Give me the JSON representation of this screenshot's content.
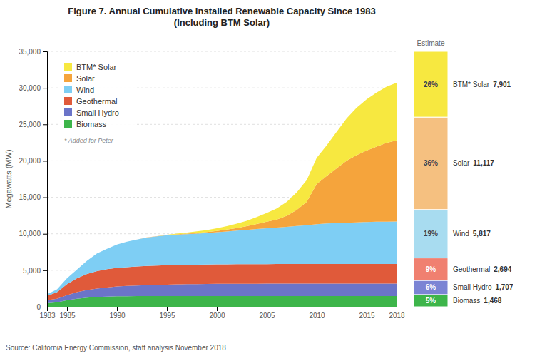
{
  "chart_data": [
    {
      "type": "area",
      "title": "Figure 7. Annual Cumulative Installed Renewable Capacity Since 1983\n(Including BTM Solar)",
      "y_label": "Megawatts (MW)",
      "annotations": [
        "* Added for Peter",
        "Source: California Energy Commission, staff analysis November 2018"
      ],
      "stacked": true,
      "grid": true,
      "legend": "top-left",
      "x": [
        1983,
        1984,
        1985,
        1986,
        1987,
        1988,
        1989,
        1990,
        1991,
        1992,
        1993,
        1994,
        1995,
        1996,
        1997,
        1998,
        1999,
        2000,
        2001,
        2002,
        2003,
        2004,
        2005,
        2006,
        2007,
        2008,
        2009,
        2010,
        2011,
        2012,
        2013,
        2014,
        2015,
        2016,
        2017,
        2018
      ],
      "series": [
        {
          "name": "Biomass",
          "color": "#3db54a",
          "values": [
            500,
            600,
            900,
            1100,
            1250,
            1350,
            1400,
            1430,
            1450,
            1455,
            1458,
            1460,
            1461,
            1462,
            1463,
            1464,
            1465,
            1466,
            1466,
            1467,
            1467,
            1467,
            1467,
            1468,
            1468,
            1468,
            1468,
            1468,
            1468,
            1468,
            1468,
            1468,
            1468,
            1468,
            1468,
            1468
          ]
        },
        {
          "name": "Small Hydro",
          "color": "#6b74c8",
          "values": [
            400,
            500,
            700,
            900,
            1050,
            1150,
            1250,
            1350,
            1400,
            1450,
            1500,
            1550,
            1580,
            1610,
            1630,
            1650,
            1665,
            1675,
            1685,
            1690,
            1695,
            1698,
            1700,
            1702,
            1703,
            1704,
            1705,
            1706,
            1706,
            1707,
            1707,
            1707,
            1707,
            1707,
            1707,
            1707
          ]
        },
        {
          "name": "Geothermal",
          "color": "#e05a3a",
          "values": [
            600,
            900,
            1500,
            1900,
            2200,
            2400,
            2500,
            2550,
            2580,
            2610,
            2630,
            2645,
            2655,
            2660,
            2663,
            2666,
            2670,
            2672,
            2675,
            2678,
            2680,
            2682,
            2685,
            2687,
            2689,
            2690,
            2691,
            2692,
            2692,
            2693,
            2693,
            2694,
            2694,
            2694,
            2694,
            2694
          ]
        },
        {
          "name": "Wind",
          "color": "#7ecef4",
          "values": [
            200,
            400,
            800,
            1200,
            1800,
            2400,
            2800,
            3200,
            3500,
            3700,
            3900,
            4000,
            4100,
            4150,
            4200,
            4250,
            4300,
            4400,
            4500,
            4600,
            4700,
            4800,
            4900,
            5000,
            5100,
            5200,
            5300,
            5450,
            5550,
            5600,
            5650,
            5700,
            5750,
            5780,
            5800,
            5817
          ]
        },
        {
          "name": "Solar",
          "color": "#f5a43c",
          "values": [
            0,
            0,
            0,
            0,
            0,
            0,
            0,
            0,
            0,
            0,
            10,
            20,
            30,
            50,
            70,
            100,
            130,
            180,
            250,
            350,
            500,
            700,
            900,
            1100,
            1500,
            2200,
            3200,
            5500,
            6500,
            7500,
            8500,
            9200,
            9800,
            10300,
            10800,
            11117
          ]
        },
        {
          "name": "BTM* Solar",
          "color": "#f7e840",
          "values": [
            0,
            0,
            0,
            0,
            0,
            0,
            0,
            0,
            0,
            0,
            0,
            0,
            50,
            100,
            150,
            200,
            280,
            370,
            480,
            600,
            750,
            950,
            1200,
            1500,
            1900,
            2400,
            3000,
            3600,
            4200,
            5000,
            5800,
            6500,
            7000,
            7400,
            7700,
            7901
          ]
        }
      ],
      "xlim": [
        1983,
        2018
      ],
      "xticks": [
        1983,
        1985,
        1990,
        1995,
        2000,
        2005,
        2010,
        2015,
        2018
      ],
      "ylim": [
        0,
        35000
      ],
      "yticks": [
        0,
        {
          "value": 5000,
          "label": "5,000"
        },
        {
          "value": 10000,
          "label": "10,000"
        },
        {
          "value": 15000,
          "label": "15,000"
        },
        {
          "value": 20000,
          "label": "20,000"
        },
        {
          "value": 25000,
          "label": "25,000"
        },
        {
          "value": 30000,
          "label": "30,000"
        },
        {
          "value": 35000,
          "label": "35,000"
        }
      ]
    },
    {
      "type": "bar",
      "title": "Estimate",
      "stacked": true,
      "data_labels": true,
      "tick_labels": false,
      "series": [
        {
          "name": "Biomass",
          "color": "#3db54a",
          "values": [
            1468
          ],
          "value_labels": [
            "1,468"
          ],
          "share_labels": [
            "5%"
          ]
        },
        {
          "name": "Small Hydro",
          "color": "#7b84d4",
          "values": [
            1707
          ],
          "value_labels": [
            "1,707"
          ],
          "share_labels": [
            "6%"
          ]
        },
        {
          "name": "Geothermal",
          "color": "#f08070",
          "values": [
            2694
          ],
          "value_labels": [
            "2,694"
          ],
          "share_labels": [
            "9%"
          ]
        },
        {
          "name": "Wind",
          "color": "#a8dcf0",
          "values": [
            5817
          ],
          "value_labels": [
            "5,817"
          ],
          "share_labels": [
            "19%"
          ]
        },
        {
          "name": "Solar",
          "color": "#f5c080",
          "values": [
            11117
          ],
          "value_labels": [
            "11,117"
          ],
          "share_labels": [
            "36%"
          ]
        },
        {
          "name": "BTM* Solar",
          "color": "#f7e840",
          "values": [
            7901
          ],
          "value_labels": [
            "7,901"
          ],
          "share_labels": [
            "26%"
          ]
        }
      ],
      "ylim": [
        0,
        30704
      ]
    }
  ]
}
